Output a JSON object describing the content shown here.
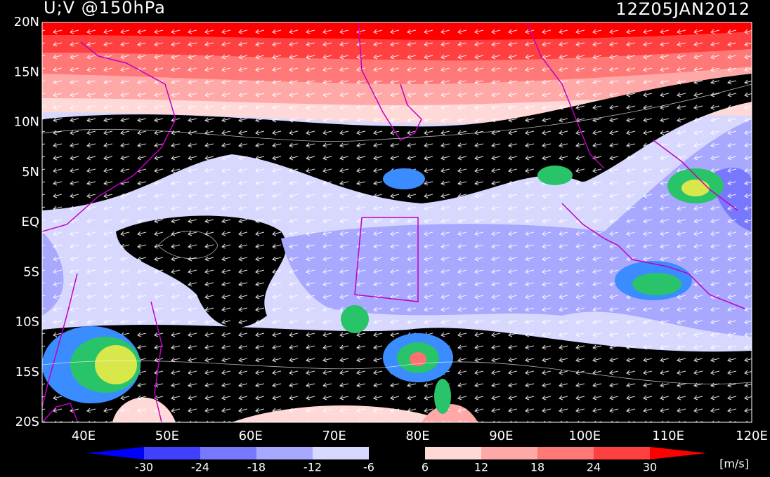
{
  "header": {
    "title": "U;V @150hPa",
    "timestamp": "12Z05JAN2012"
  },
  "map": {
    "lat_labels": [
      "20N",
      "15N",
      "10N",
      "5N",
      "EQ",
      "5S",
      "10S",
      "15S",
      "20S"
    ],
    "lon_labels": [
      "40E",
      "50E",
      "60E",
      "70E",
      "80E",
      "90E",
      "100E",
      "110E",
      "120E"
    ]
  },
  "colorbar": {
    "labels": [
      "-30",
      "-24",
      "-18",
      "-12",
      "-6",
      "6",
      "12",
      "18",
      "24",
      "30"
    ],
    "colors": [
      "#0000ff",
      "#4040ff",
      "#7878ff",
      "#a8a8ff",
      "#d8d8ff",
      "#000000",
      "#ffd8d8",
      "#ffa8a8",
      "#ff7878",
      "#ff4040",
      "#ff0000"
    ],
    "units": "[m/s]"
  }
}
